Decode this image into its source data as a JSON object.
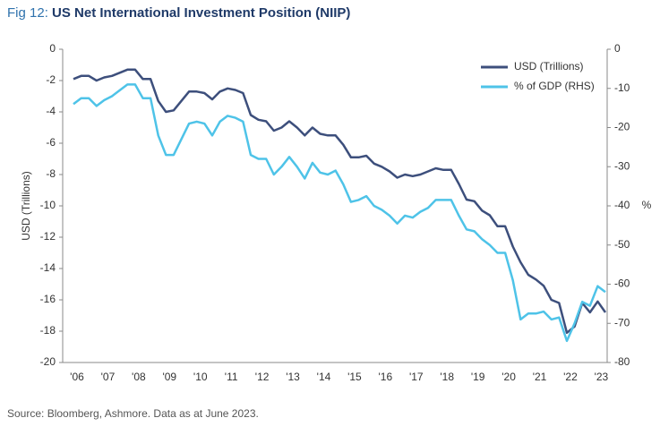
{
  "chart_data": {
    "type": "line",
    "title_prefix": "Fig 12:",
    "title": "US Net International Investment Position (NIIP)",
    "source": "Source: Bloomberg, Ashmore. Data as at June 2023.",
    "y_label": "USD (Trillions)",
    "y2_label": "%",
    "categories": [
      "'06",
      null,
      null,
      null,
      "'07",
      null,
      null,
      null,
      "'08",
      null,
      null,
      null,
      "'09",
      null,
      null,
      null,
      "'10",
      null,
      null,
      null,
      "'11",
      null,
      null,
      null,
      "'12",
      null,
      null,
      null,
      "'13",
      null,
      null,
      null,
      "'14",
      null,
      null,
      null,
      "'15",
      null,
      null,
      null,
      "'16",
      null,
      null,
      null,
      "'17",
      null,
      null,
      null,
      "'18",
      null,
      null,
      null,
      "'19",
      null,
      null,
      null,
      "'20",
      null,
      null,
      null,
      "'21",
      null,
      null,
      null,
      "'22",
      null,
      null,
      null,
      "'23",
      null
    ],
    "series": [
      {
        "name": "USD (Trillions)",
        "color": "#3d4f7c",
        "axis": "y",
        "values": [
          -1.9,
          -1.7,
          -1.7,
          -2.0,
          -1.8,
          -1.7,
          -1.5,
          -1.3,
          -1.3,
          -1.9,
          -1.9,
          -3.3,
          -4.0,
          -3.9,
          -3.3,
          -2.7,
          -2.7,
          -2.8,
          -3.2,
          -2.7,
          -2.5,
          -2.6,
          -2.8,
          -4.2,
          -4.5,
          -4.6,
          -5.2,
          -5.0,
          -4.6,
          -5.0,
          -5.5,
          -5.0,
          -5.4,
          -5.5,
          -5.5,
          -6.1,
          -6.9,
          -6.9,
          -6.8,
          -7.3,
          -7.5,
          -7.8,
          -8.2,
          -8.0,
          -8.1,
          -8.0,
          -7.8,
          -7.6,
          -7.7,
          -7.7,
          -8.6,
          -9.6,
          -9.7,
          -10.3,
          -10.6,
          -11.3,
          -11.3,
          -12.6,
          -13.6,
          -14.4,
          -14.7,
          -15.1,
          -16.0,
          -16.2,
          -18.1,
          -17.7,
          -16.2,
          -16.8,
          -16.1,
          -16.8
        ]
      },
      {
        "name": "% of GDP (RHS)",
        "color": "#4ec3e8",
        "axis": "y2",
        "values": [
          -14,
          -12.5,
          -12.5,
          -14.5,
          -13,
          -12,
          -10.5,
          -9,
          -9,
          -12.5,
          -12.5,
          -22,
          -27,
          -27,
          -23,
          -19,
          -18.5,
          -19,
          -22,
          -18.5,
          -17,
          -17.5,
          -18.5,
          -27,
          -28,
          -28,
          -32,
          -30,
          -27.5,
          -30,
          -33,
          -29,
          -31.5,
          -32,
          -31,
          -34.5,
          -39,
          -38.5,
          -37.5,
          -40,
          -41,
          -42.5,
          -44.5,
          -42.5,
          -43,
          -41.5,
          -40.5,
          -38.5,
          -38.5,
          -38.5,
          -42.5,
          -46,
          -46.5,
          -48.5,
          -50,
          -52,
          -52,
          -59,
          -69,
          -67.5,
          -67.5,
          -67,
          -69,
          -68.5,
          -74.5,
          -70,
          -64.5,
          -65.5,
          -60.5,
          -62
        ]
      }
    ],
    "ylim": [
      -20,
      0
    ],
    "yticks": [
      0,
      -2,
      -4,
      -6,
      -8,
      -10,
      -12,
      -14,
      -16,
      -18,
      -20
    ],
    "y2lim": [
      -80,
      0
    ],
    "y2ticks": [
      0,
      -10,
      -20,
      -30,
      -40,
      -50,
      -60,
      -70,
      -80
    ],
    "legend": "top-right",
    "grid": false
  }
}
